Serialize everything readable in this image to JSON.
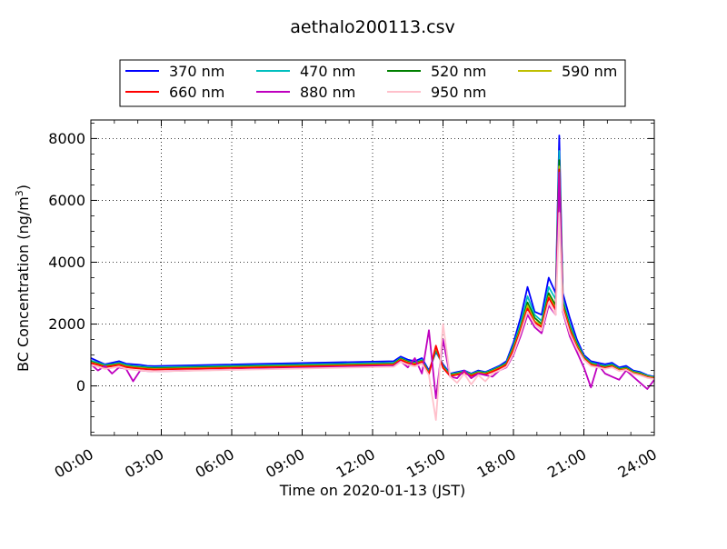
{
  "chart_data": {
    "type": "line",
    "title": "aethalo200113.csv",
    "xlabel": "Time on 2020-01-13 (JST)",
    "ylabel": "BC Concentration (ng/m³)",
    "ylabel_main": "BC Concentration (ng/m",
    "ylabel_sup": "3",
    "ylabel_end": ")",
    "xlim_hours": [
      0,
      24
    ],
    "ylim": [
      -1600,
      8600
    ],
    "xticks": [
      {
        "value": 0,
        "label": "00:00"
      },
      {
        "value": 3,
        "label": "03:00"
      },
      {
        "value": 6,
        "label": "06:00"
      },
      {
        "value": 9,
        "label": "09:00"
      },
      {
        "value": 12,
        "label": "12:00"
      },
      {
        "value": 15,
        "label": "15:00"
      },
      {
        "value": 18,
        "label": "18:00"
      },
      {
        "value": 21,
        "label": "21:00"
      },
      {
        "value": 24,
        "label": "24:00"
      }
    ],
    "yticks": [
      {
        "value": 0,
        "label": "0"
      },
      {
        "value": 2000,
        "label": "2000"
      },
      {
        "value": 4000,
        "label": "4000"
      },
      {
        "value": 6000,
        "label": "6000"
      },
      {
        "value": 8000,
        "label": "8000"
      }
    ],
    "grid": true,
    "grid_style": "dotted",
    "legend_position": "top, above plot, 4 columns",
    "x_hours": [
      0.0,
      0.3,
      0.6,
      0.9,
      1.2,
      1.5,
      1.8,
      2.1,
      2.4,
      2.7,
      12.9,
      13.2,
      13.5,
      13.8,
      14.1,
      14.4,
      14.7,
      15.0,
      15.3,
      15.6,
      15.9,
      16.2,
      16.5,
      16.8,
      17.1,
      17.4,
      17.7,
      18.0,
      18.3,
      18.6,
      18.9,
      19.2,
      19.5,
      19.8,
      19.95,
      20.1,
      20.4,
      20.7,
      21.0,
      21.3,
      21.6,
      21.9,
      22.2,
      22.5,
      22.8,
      23.1,
      23.4,
      23.7,
      24.0
    ],
    "series": [
      {
        "name": "370 nm",
        "color": "#0000ff",
        "values": [
          900,
          800,
          700,
          750,
          800,
          720,
          700,
          680,
          650,
          640,
          800,
          950,
          850,
          800,
          900,
          500,
          1100,
          700,
          400,
          450,
          500,
          400,
          500,
          450,
          550,
          650,
          800,
          1400,
          2200,
          3200,
          2400,
          2300,
          3500,
          3000,
          8100,
          3000,
          2200,
          1500,
          1000,
          800,
          750,
          700,
          750,
          600,
          650,
          500,
          450,
          350,
          300
        ]
      },
      {
        "name": "470 nm",
        "color": "#00bfbf",
        "values": [
          820,
          750,
          680,
          700,
          750,
          680,
          650,
          630,
          610,
          600,
          750,
          900,
          800,
          750,
          850,
          450,
          1150,
          650,
          380,
          420,
          480,
          380,
          470,
          430,
          520,
          620,
          750,
          1300,
          2000,
          2900,
          2300,
          2100,
          3200,
          2800,
          7600,
          2800,
          2000,
          1400,
          950,
          750,
          700,
          650,
          700,
          560,
          600,
          470,
          420,
          330,
          280
        ]
      },
      {
        "name": "520 nm",
        "color": "#008000",
        "values": [
          780,
          720,
          650,
          680,
          720,
          650,
          620,
          600,
          580,
          570,
          720,
          880,
          780,
          730,
          820,
          420,
          1200,
          620,
          360,
          400,
          460,
          360,
          450,
          410,
          500,
          600,
          720,
          1250,
          1900,
          2700,
          2200,
          2000,
          3000,
          2600,
          7300,
          2700,
          1900,
          1350,
          920,
          720,
          670,
          620,
          670,
          540,
          580,
          450,
          400,
          310,
          270
        ]
      },
      {
        "name": "590 nm",
        "color": "#bfbf00",
        "values": [
          760,
          700,
          630,
          660,
          700,
          630,
          600,
          580,
          560,
          550,
          700,
          860,
          760,
          710,
          800,
          400,
          1250,
          600,
          340,
          380,
          440,
          340,
          430,
          390,
          480,
          580,
          700,
          1200,
          1850,
          2600,
          2100,
          1950,
          2900,
          2500,
          7100,
          2600,
          1850,
          1300,
          900,
          700,
          650,
          600,
          650,
          520,
          560,
          430,
          380,
          300,
          260
        ]
      },
      {
        "name": "660 nm",
        "color": "#ff0000",
        "values": [
          740,
          680,
          610,
          640,
          680,
          610,
          580,
          560,
          540,
          530,
          680,
          840,
          740,
          690,
          780,
          380,
          1300,
          580,
          320,
          360,
          420,
          320,
          410,
          370,
          460,
          560,
          680,
          1150,
          1800,
          2500,
          2050,
          1900,
          2850,
          2450,
          7000,
          2550,
          1800,
          1250,
          880,
          680,
          630,
          580,
          630,
          500,
          540,
          410,
          360,
          280,
          240
        ]
      },
      {
        "name": "880 nm",
        "color": "#bf00bf",
        "values": [
          700,
          500,
          650,
          400,
          600,
          550,
          150,
          500,
          480,
          470,
          650,
          800,
          600,
          900,
          400,
          1800,
          -400,
          1500,
          300,
          250,
          500,
          250,
          400,
          350,
          300,
          500,
          600,
          1000,
          1600,
          2300,
          1900,
          1700,
          2600,
          2300,
          6900,
          2400,
          1600,
          1100,
          600,
          -50,
          700,
          400,
          300,
          200,
          500,
          300,
          100,
          -100,
          200
        ]
      },
      {
        "name": "950 nm",
        "color": "#ffc0cb",
        "values": [
          680,
          620,
          550,
          580,
          620,
          550,
          520,
          500,
          480,
          470,
          620,
          780,
          680,
          630,
          720,
          350,
          -1100,
          2000,
          300,
          100,
          400,
          50,
          350,
          150,
          400,
          500,
          620,
          1050,
          1700,
          2400,
          2000,
          1800,
          2700,
          2300,
          5600,
          2450,
          1700,
          1200,
          850,
          640,
          600,
          550,
          600,
          480,
          520,
          390,
          340,
          260,
          220
        ]
      }
    ]
  }
}
